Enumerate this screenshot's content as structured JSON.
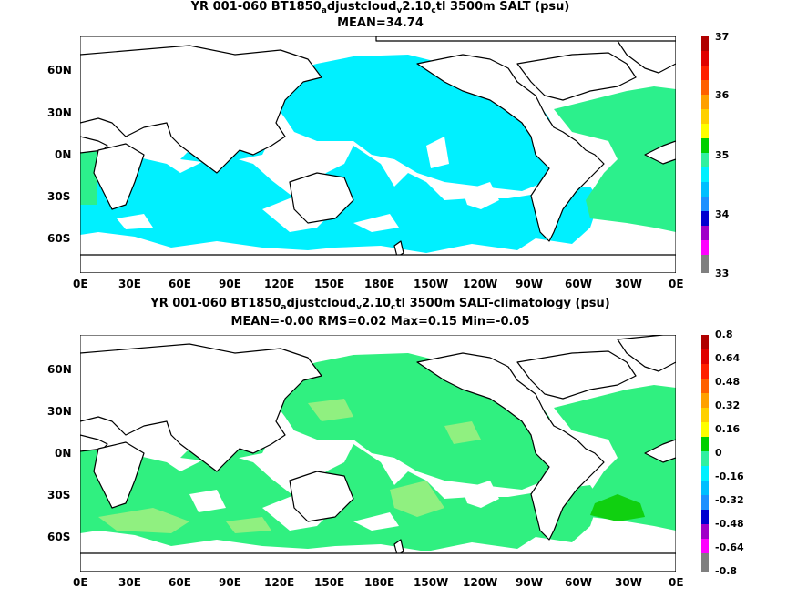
{
  "panel1": {
    "title_part1": "YR 001-060 BT1850",
    "title_sub1": "a",
    "title_part2": "djustcloud",
    "title_sub2": "v",
    "title_part3": "2.10",
    "title_sub3": "c",
    "title_part4": "tl 3500m SALT (psu)",
    "subtitle": "MEAN=34.74",
    "colorbar_labels": [
      "37",
      "36",
      "35",
      "34",
      "33"
    ],
    "fill_color": "#00f0ff",
    "atlantic_color": "#2cf08c"
  },
  "panel2": {
    "title_part1": "YR 001-060 BT1850",
    "title_sub1": "a",
    "title_part2": "djustcloud",
    "title_sub2": "v",
    "title_part3": "2.10",
    "title_sub3": "c",
    "title_part4": "tl 3500m SALT-climatology (psu)",
    "subtitle": "MEAN=-0.00   RMS=0.02   Max=0.15   Min=-0.05",
    "colorbar_labels": [
      "0.8",
      "0.64",
      "0.48",
      "0.32",
      "0.16",
      "0",
      "-0.16",
      "-0.32",
      "-0.48",
      "-0.64",
      "-0.8"
    ],
    "fill_color": "#30f080",
    "light_color": "#90f080",
    "dark_color": "#10d010"
  },
  "lat_labels": [
    "60N",
    "30N",
    "0N",
    "30S",
    "60S"
  ],
  "lon_labels": [
    "0E",
    "30E",
    "60E",
    "90E",
    "120E",
    "150E",
    "180E",
    "150W",
    "120W",
    "90W",
    "60W",
    "30W",
    "0E"
  ],
  "colorbar_colors": [
    "#7f7f7f",
    "#ff00ff",
    "#a000c8",
    "#0000d0",
    "#1e90ff",
    "#00bfff",
    "#00f0ff",
    "#30f0a0",
    "#00d000",
    "#ffff00",
    "#ffd000",
    "#ffa000",
    "#ff6000",
    "#ff2000",
    "#e00000",
    "#b00000"
  ]
}
